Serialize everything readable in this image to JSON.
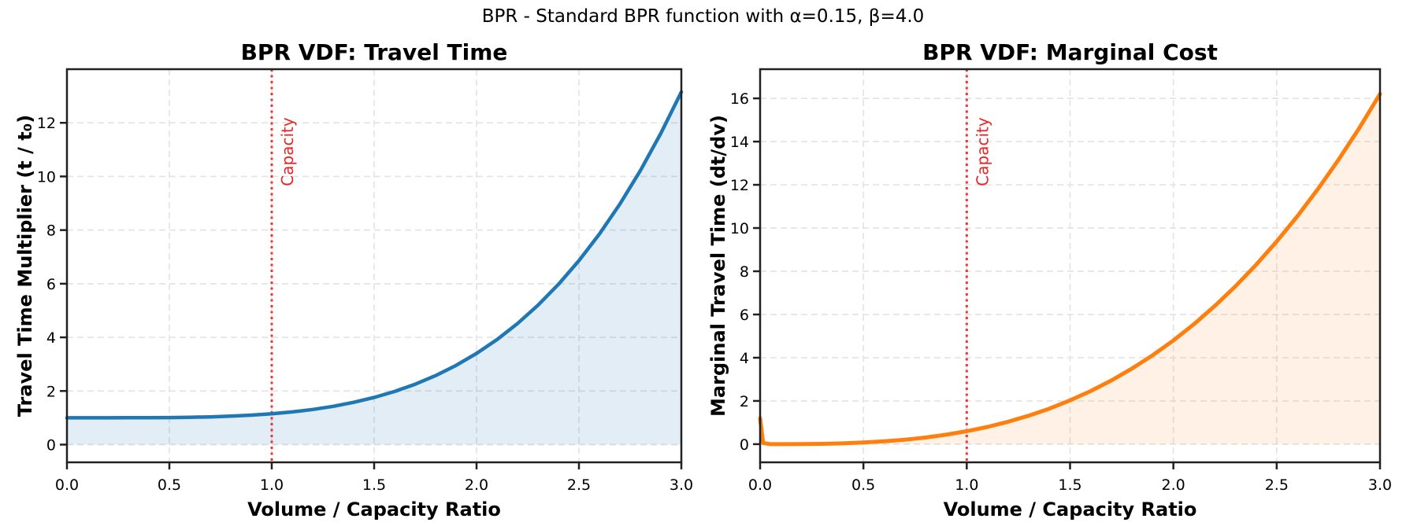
{
  "figure": {
    "suptitle": "BPR - Standard BPR function with α=0.15, β=4.0"
  },
  "style": {
    "background": "#ffffff",
    "grid_color": "#e4e4e4",
    "spine_color": "#212121",
    "text_color": "#000000",
    "capacity_color": "#ef2222"
  },
  "chart_data": [
    {
      "type": "area",
      "title": "BPR VDF: Travel Time",
      "xlabel": "Volume / Capacity Ratio",
      "ylabel": "Travel Time Multiplier (t / t₀)",
      "xlim": [
        0.0,
        3.0
      ],
      "ylim": [
        -0.66,
        14.0
      ],
      "xticks": [
        "0.0",
        "0.5",
        "1.0",
        "1.5",
        "2.0",
        "2.5",
        "3.0"
      ],
      "yticks": [
        "0",
        "2",
        "4",
        "6",
        "8",
        "10",
        "12"
      ],
      "grid": "dashed",
      "legend": "none",
      "line_color": "#1f77b4",
      "fill_color": "rgba(31,119,180,0.13)",
      "line_width": 4.5,
      "capacity_line": {
        "x": 1.0,
        "label": "Capacity",
        "style": "dotted"
      },
      "x": [
        0.0,
        0.1,
        0.2,
        0.3,
        0.4,
        0.5,
        0.6,
        0.7,
        0.8,
        0.9,
        1.0,
        1.1,
        1.2,
        1.3,
        1.4,
        1.5,
        1.6,
        1.7,
        1.8,
        1.9,
        2.0,
        2.1,
        2.2,
        2.3,
        2.4,
        2.5,
        2.6,
        2.7,
        2.8,
        2.9,
        3.0
      ],
      "y": [
        1.0,
        1.0,
        1.0002,
        1.0012,
        1.0038,
        1.0094,
        1.0194,
        1.036,
        1.0614,
        1.0984,
        1.15,
        1.2196,
        1.311,
        1.4284,
        1.5762,
        1.7594,
        1.983,
        2.2528,
        2.5746,
        2.9548,
        3.4,
        3.9172,
        4.5138,
        5.1976,
        5.9766,
        6.8594,
        7.8546,
        8.9716,
        10.2198,
        11.6092,
        13.15
      ]
    },
    {
      "type": "area",
      "title": "BPR VDF: Marginal Cost",
      "xlabel": "Volume / Capacity Ratio",
      "ylabel": "Marginal Travel Time (dt/dv)",
      "xlim": [
        0.0,
        3.0
      ],
      "ylim": [
        -0.84,
        17.35
      ],
      "xticks": [
        "0.0",
        "0.5",
        "1.0",
        "1.5",
        "2.0",
        "2.5",
        "3.0"
      ],
      "yticks": [
        "0",
        "2",
        "4",
        "6",
        "8",
        "10",
        "12",
        "14",
        "16"
      ],
      "grid": "dashed",
      "legend": "none",
      "line_color": "#ff7f0e",
      "fill_color": "rgba(255,127,14,0.11)",
      "line_width": 5,
      "capacity_line": {
        "x": 1.0,
        "label": "Capacity",
        "style": "dotted"
      },
      "x": [
        0.0,
        0.015,
        0.05,
        0.1,
        0.2,
        0.3,
        0.4,
        0.5,
        0.6,
        0.7,
        0.8,
        0.9,
        1.0,
        1.1,
        1.2,
        1.3,
        1.4,
        1.5,
        1.6,
        1.7,
        1.8,
        1.9,
        2.0,
        2.1,
        2.2,
        2.3,
        2.4,
        2.5,
        2.6,
        2.7,
        2.8,
        2.9,
        3.0
      ],
      "y": [
        1.2,
        0.05,
        0.0001,
        0.0006,
        0.0048,
        0.0162,
        0.0384,
        0.075,
        0.1296,
        0.2058,
        0.3072,
        0.4374,
        0.6,
        0.7986,
        1.0368,
        1.3183,
        1.6464,
        2.025,
        2.4576,
        2.9478,
        3.4992,
        4.1154,
        4.8,
        5.5566,
        6.3888,
        7.3002,
        8.2944,
        9.375,
        10.5456,
        11.8098,
        13.1712,
        14.6334,
        16.2
      ]
    }
  ]
}
